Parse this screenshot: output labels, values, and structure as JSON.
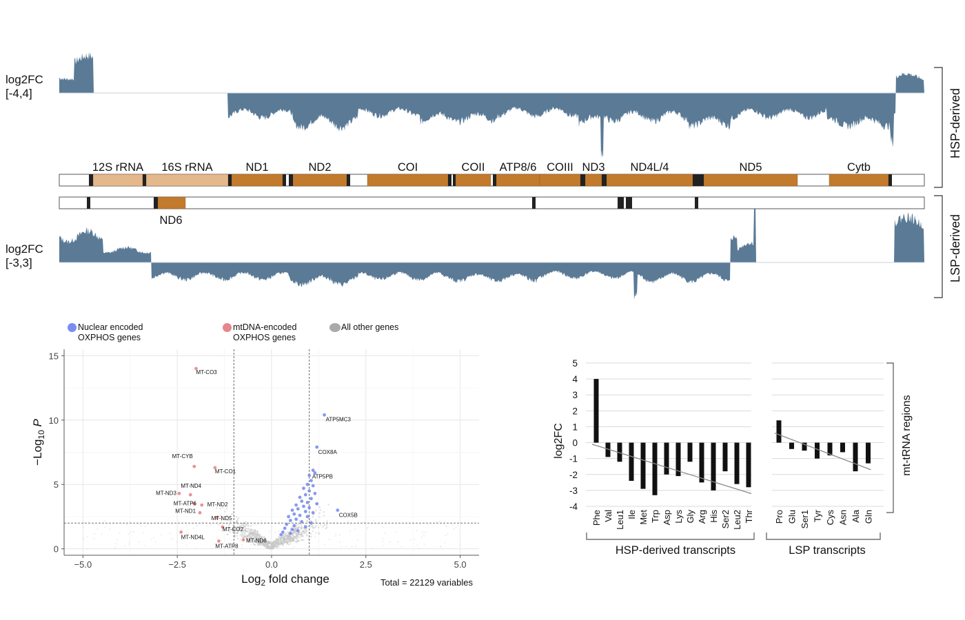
{
  "tracks": {
    "hsp_label": "log2FC\n[-4,4]",
    "lsp_label": "log2FC\n[-3,3]",
    "hsp_side": "HSP-derived",
    "lsp_side": "LSP-derived",
    "track_color": "#5a7a96",
    "hsp_genes": [
      {
        "name": "12S rRNA",
        "type": "rRNA"
      },
      {
        "name": "16S rRNA",
        "type": "rRNA"
      },
      {
        "name": "ND1",
        "type": "protein"
      },
      {
        "name": "ND2",
        "type": "protein"
      },
      {
        "name": "COI",
        "type": "protein"
      },
      {
        "name": "COII",
        "type": "protein"
      },
      {
        "name": "ATP8/6",
        "type": "protein"
      },
      {
        "name": "COIII",
        "type": "protein"
      },
      {
        "name": "ND3",
        "type": "protein"
      },
      {
        "name": "ND4L/4",
        "type": "protein"
      },
      {
        "name": "ND5",
        "type": "protein"
      },
      {
        "name": "Cytb",
        "type": "protein"
      }
    ],
    "lsp_genes": [
      {
        "name": "ND6",
        "type": "protein"
      }
    ],
    "colors": {
      "rRNA": "#e3b88d",
      "protein": "#c27a2c",
      "tRNA": "#222222"
    }
  },
  "legend": {
    "nuclear": "Nuclear encoded\nOXPHOS genes",
    "mtdna": "mtDNA-encoded\nOXPHOS genes",
    "other": "All other genes",
    "nuclear_color": "#7b8df0",
    "mtdna_color": "#e5878a",
    "other_color": "#aaaaaa"
  },
  "chart_data": [
    {
      "type": "scatter",
      "xlabel": "Log2 fold change",
      "ylabel": "−Log10 P",
      "xlim": [
        -5.5,
        5.5
      ],
      "ylim": [
        -0.5,
        15.5
      ],
      "xticks": [
        -5.0,
        -2.5,
        0.0,
        2.5,
        5.0
      ],
      "xtick_labels": [
        "−5.0",
        "−2.5",
        "0.0",
        "2.5",
        "5.0"
      ],
      "yticks": [
        0,
        5,
        10,
        15
      ],
      "thresholds": {
        "fc": [
          -1,
          1
        ],
        "p": 2
      },
      "caption": "Total = 22129 variables",
      "grid": true,
      "series": [
        {
          "name": "mtDNA-encoded OXPHOS genes",
          "color": "#e5878a",
          "points": [
            {
              "label": "MT-CO3",
              "x": -2.0,
              "y": 14.0
            },
            {
              "label": "MT-CYB",
              "x": -2.05,
              "y": 6.4
            },
            {
              "label": "MT-CO1",
              "x": -1.5,
              "y": 6.3
            },
            {
              "label": "MT-ND3",
              "x": -2.45,
              "y": 4.3
            },
            {
              "label": "MT-ND4",
              "x": -2.15,
              "y": 4.2
            },
            {
              "label": "MT-ATP6",
              "x": -2.05,
              "y": 3.5
            },
            {
              "label": "MT-ND2",
              "x": -1.85,
              "y": 3.4
            },
            {
              "label": "MT-ND1",
              "x": -1.9,
              "y": 2.8
            },
            {
              "label": "MT-ND5",
              "x": -1.45,
              "y": 2.4
            },
            {
              "label": "MT-CO2",
              "x": -1.3,
              "y": 1.7
            },
            {
              "label": "MT-ND4L",
              "x": -2.4,
              "y": 1.3
            },
            {
              "label": "MT-ATP8",
              "x": -1.4,
              "y": 0.6
            },
            {
              "label": "MT-ND6",
              "x": -0.75,
              "y": 0.7
            }
          ]
        },
        {
          "name": "Nuclear encoded OXPHOS genes",
          "color": "#7b8df0",
          "points": [
            {
              "label": "ATP5MC3",
              "x": 1.4,
              "y": 10.4
            },
            {
              "label": "COX8A",
              "x": 1.2,
              "y": 7.9
            },
            {
              "label": "ATP5PB",
              "x": 1.15,
              "y": 5.9
            },
            {
              "label": "COX5B",
              "x": 1.75,
              "y": 3.0
            },
            {
              "label": "",
              "x": 1.1,
              "y": 6.1
            },
            {
              "label": "",
              "x": 1.0,
              "y": 5.7
            },
            {
              "label": "",
              "x": 1.05,
              "y": 5.3
            },
            {
              "label": "",
              "x": 0.95,
              "y": 5.0
            },
            {
              "label": "",
              "x": 1.1,
              "y": 4.9
            },
            {
              "label": "",
              "x": 0.85,
              "y": 4.7
            },
            {
              "label": "",
              "x": 1.0,
              "y": 4.5
            },
            {
              "label": "",
              "x": 1.15,
              "y": 4.3
            },
            {
              "label": "",
              "x": 0.9,
              "y": 4.2
            },
            {
              "label": "",
              "x": 0.75,
              "y": 4.0
            },
            {
              "label": "",
              "x": 1.05,
              "y": 3.9
            },
            {
              "label": "",
              "x": 0.8,
              "y": 3.7
            },
            {
              "label": "",
              "x": 0.95,
              "y": 3.6
            },
            {
              "label": "",
              "x": 1.2,
              "y": 3.5
            },
            {
              "label": "",
              "x": 0.65,
              "y": 3.4
            },
            {
              "label": "",
              "x": 0.85,
              "y": 3.3
            },
            {
              "label": "",
              "x": 1.0,
              "y": 3.2
            },
            {
              "label": "",
              "x": 0.7,
              "y": 3.1
            },
            {
              "label": "",
              "x": 0.55,
              "y": 3.0
            },
            {
              "label": "",
              "x": 0.9,
              "y": 2.9
            },
            {
              "label": "",
              "x": 1.1,
              "y": 2.8
            },
            {
              "label": "",
              "x": 0.6,
              "y": 2.7
            },
            {
              "label": "",
              "x": 0.75,
              "y": 2.6
            },
            {
              "label": "",
              "x": 0.45,
              "y": 2.5
            },
            {
              "label": "",
              "x": 0.95,
              "y": 2.5
            },
            {
              "label": "",
              "x": 0.65,
              "y": 2.3
            },
            {
              "label": "",
              "x": 0.5,
              "y": 2.2
            },
            {
              "label": "",
              "x": 0.8,
              "y": 2.1
            },
            {
              "label": "",
              "x": 1.05,
              "y": 2.0
            },
            {
              "label": "",
              "x": 0.4,
              "y": 1.9
            },
            {
              "label": "",
              "x": 0.6,
              "y": 1.8
            },
            {
              "label": "",
              "x": 0.35,
              "y": 1.6
            },
            {
              "label": "",
              "x": 0.55,
              "y": 1.5
            },
            {
              "label": "",
              "x": 0.9,
              "y": 1.7
            },
            {
              "label": "",
              "x": 0.3,
              "y": 1.3
            },
            {
              "label": "",
              "x": 0.5,
              "y": 1.2
            },
            {
              "label": "",
              "x": 0.25,
              "y": 1.1
            },
            {
              "label": "",
              "x": 0.7,
              "y": 1.4
            }
          ]
        }
      ]
    },
    {
      "type": "bar",
      "ylabel": "log2FC",
      "ylim": [
        -4,
        5
      ],
      "yticks": [
        -4,
        -3,
        -2,
        -1,
        0,
        1,
        2,
        3,
        4,
        5
      ],
      "side_label": "mt-tRNA regions",
      "panels": [
        {
          "group": "HSP-derived transcripts",
          "categories": [
            "Phe",
            "Val",
            "Leu1",
            "Ile",
            "Met",
            "Trp",
            "Asp",
            "Lys",
            "Gly",
            "Arg",
            "His",
            "Ser2",
            "Leu2",
            "Thr"
          ],
          "values": [
            4.0,
            -0.9,
            -1.2,
            -2.4,
            -2.9,
            -3.3,
            -2.0,
            -2.1,
            -1.2,
            -2.5,
            -3.0,
            -1.8,
            -2.6,
            -2.8
          ],
          "trend": [
            -0.1,
            -3.2
          ]
        },
        {
          "group": "LSP transcripts",
          "categories": [
            "Pro",
            "Glu",
            "Ser1",
            "Tyr",
            "Cys",
            "Asn",
            "Ala",
            "Gln"
          ],
          "values": [
            1.4,
            -0.4,
            -0.5,
            -1.0,
            -0.8,
            -0.6,
            -1.8,
            -1.3
          ],
          "trend": [
            0.6,
            -1.7
          ]
        }
      ]
    }
  ]
}
